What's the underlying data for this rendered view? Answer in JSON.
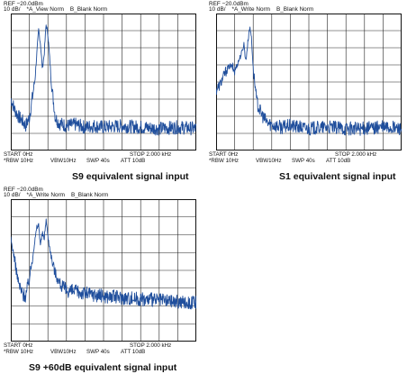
{
  "panels": [
    {
      "ref": "REF −20.0dBm",
      "scale": "10 dB/",
      "trace_a": "*A_View Norm",
      "trace_b": "B_Blank Norm",
      "start": "START 0Hz",
      "rbw": "*RBW 10Hz",
      "vbw": "VBW10Hz",
      "swp": "SWP 40s",
      "stop": "STOP 2.000 kHz",
      "att": "ATT 10dB",
      "caption": "S9 equivalent signal input"
    },
    {
      "ref": "REF −20.0dBm",
      "scale": "10 dB/",
      "trace_a": "*A_Write Norm",
      "trace_b": "B_Blank Norm",
      "start": "START 0Hz",
      "rbw": "*RBW 10Hz",
      "vbw": "VBW10Hz",
      "swp": "SWP 40s",
      "stop": "STOP 2.000 kHz",
      "att": "ATT 10dB",
      "caption": "S1 equivalent signal input"
    },
    {
      "ref": "REF −20.0dBm",
      "scale": "10 dB/",
      "trace_a": "*A_Write Norm",
      "trace_b": "B_Blank Norm",
      "start": "START 0Hz",
      "rbw": "*RBW 10Hz",
      "vbw": "VBW10Hz",
      "swp": "SWP 40s",
      "stop": "STOP 2.000 kHz",
      "att": "ATT 10dB",
      "caption": "S9 +60dB equivalent signal input"
    }
  ],
  "chart_data": [
    {
      "type": "line",
      "x_unit": "Hz",
      "y_unit": "dBm",
      "xlim": [
        0,
        2000
      ],
      "ylim": [
        -120,
        -20
      ],
      "grid": true,
      "trace_color": "#1f4e9c",
      "series": [
        {
          "x": [
            0,
            40,
            80,
            120,
            160,
            200,
            240,
            260,
            280,
            300,
            320,
            340,
            360,
            380,
            400,
            440,
            480,
            520,
            560,
            600,
            700,
            800,
            900,
            1000,
            1200,
            1400,
            1600,
            1800,
            2000
          ],
          "values": [
            -82,
            -90,
            -95,
            -98,
            -102,
            -96,
            -78,
            -68,
            -50,
            -32,
            -42,
            -60,
            -50,
            -28,
            -35,
            -72,
            -96,
            -100,
            -101,
            -102,
            -101,
            -103,
            -102,
            -103,
            -102,
            -103,
            -104,
            -103,
            -104
          ]
        }
      ]
    },
    {
      "type": "line",
      "x_unit": "Hz",
      "y_unit": "dBm",
      "xlim": [
        0,
        2000
      ],
      "ylim": [
        -120,
        -20
      ],
      "grid": true,
      "trace_color": "#1f4e9c",
      "series": [
        {
          "x": [
            0,
            40,
            80,
            120,
            160,
            200,
            240,
            280,
            300,
            320,
            360,
            380,
            400,
            440,
            480,
            520,
            560,
            600,
            700,
            800,
            900,
            1000,
            1200,
            1400,
            1600,
            1800,
            2000
          ],
          "values": [
            -76,
            -72,
            -66,
            -60,
            -58,
            -62,
            -55,
            -48,
            -42,
            -55,
            -30,
            -36,
            -60,
            -85,
            -92,
            -97,
            -100,
            -101,
            -103,
            -102,
            -103,
            -104,
            -103,
            -104,
            -104,
            -103,
            -104
          ]
        }
      ]
    },
    {
      "type": "line",
      "x_unit": "Hz",
      "y_unit": "dBm",
      "xlim": [
        0,
        2000
      ],
      "ylim": [
        -120,
        -20
      ],
      "grid": true,
      "trace_color": "#1f4e9c",
      "series": [
        {
          "x": [
            0,
            40,
            80,
            120,
            160,
            200,
            240,
            280,
            300,
            320,
            340,
            360,
            380,
            400,
            440,
            480,
            520,
            560,
            600,
            700,
            800,
            900,
            1000,
            1200,
            1400,
            1600,
            1800,
            2000
          ],
          "values": [
            -48,
            -62,
            -78,
            -86,
            -88,
            -76,
            -58,
            -40,
            -38,
            -52,
            -44,
            -48,
            -34,
            -46,
            -62,
            -72,
            -78,
            -82,
            -84,
            -85,
            -86,
            -87,
            -88,
            -89,
            -90,
            -91,
            -92,
            -93
          ]
        }
      ]
    }
  ]
}
